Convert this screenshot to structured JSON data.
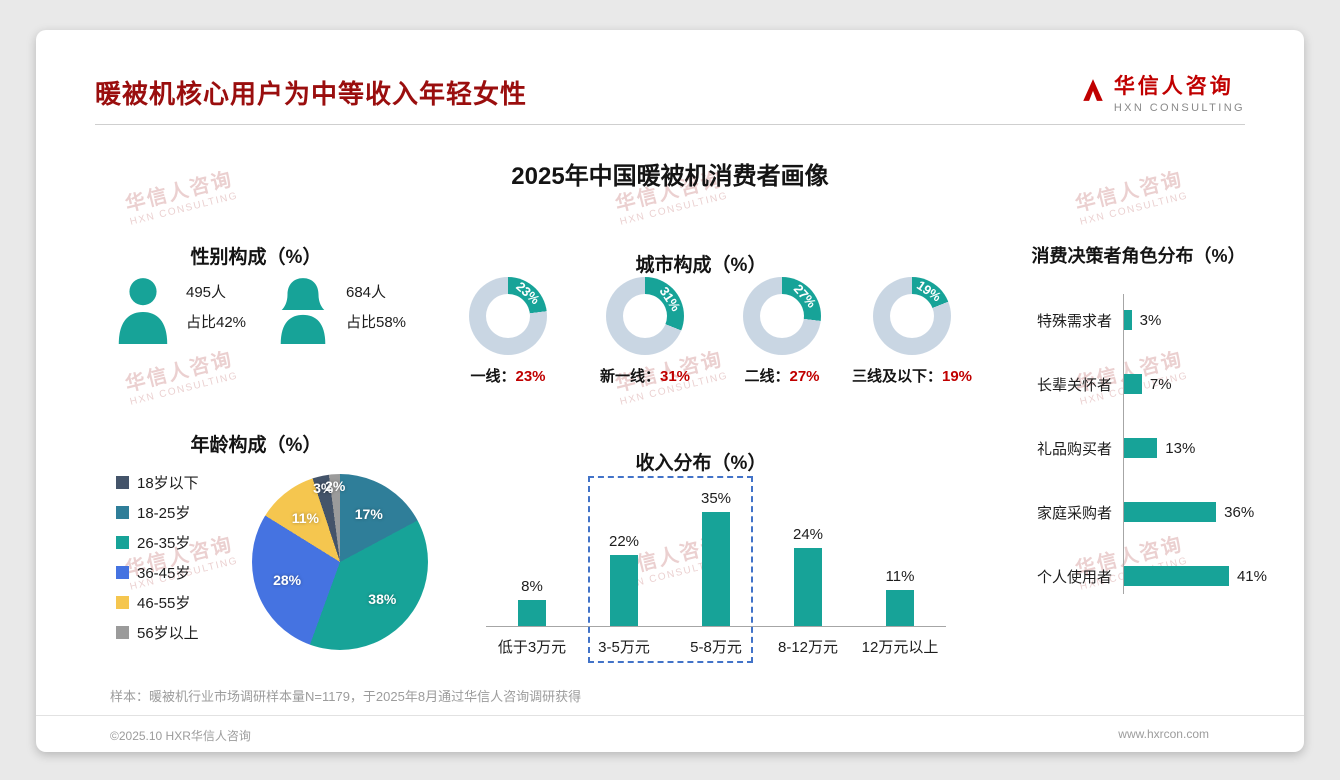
{
  "page": {
    "header_title": "暖被机核心用户为中等收入年轻女性",
    "logo_name": "华信人咨询",
    "logo_sub": "HXN CONSULTING",
    "main_title": "2025年中国暖被机消费者画像",
    "watermark_line1": "华信人咨询",
    "watermark_line2": "HXN CONSULTING",
    "footnote": "样本：暖被机行业市场调研样本量N=1179，于2025年8月通过华信人咨询调研获得",
    "footer_left": "©2025.10 HXR华信人咨询",
    "footer_right": "www.hxrcon.com"
  },
  "colors": {
    "teal": "#17A398",
    "donut_track": "#C9D6E3",
    "title_red": "#9A0E0E",
    "accent_red": "#C00000",
    "highlight_border": "#4273C8",
    "axis_gray": "#A6A6A6",
    "watermark_pink": "#C87E7E"
  },
  "chart_data": [
    {
      "type": "pictogram",
      "title": "性别构成（%）",
      "items": [
        {
          "icon": "male-icon",
          "count": "495人",
          "share": "占比42%"
        },
        {
          "icon": "female-icon",
          "count": "684人",
          "share": "占比58%"
        }
      ]
    },
    {
      "type": "donut",
      "title": "城市构成（%）",
      "items": [
        {
          "label": "一线",
          "caption": "一线：",
          "value": 23,
          "display": "23%"
        },
        {
          "label": "新一线",
          "caption": "新一线：",
          "value": 31,
          "display": "31%"
        },
        {
          "label": "二线",
          "caption": "二线：",
          "value": 27,
          "display": "27%"
        },
        {
          "label": "三线及以下",
          "caption": "三线及以下：",
          "value": 19,
          "display": "19%"
        }
      ]
    },
    {
      "type": "bar-horizontal",
      "title": "消费决策者角色分布（%）",
      "categories": [
        "特殊需求者",
        "长辈关怀者",
        "礼品购买者",
        "家庭采购者",
        "个人使用者"
      ],
      "values": [
        3,
        7,
        13,
        36,
        41
      ],
      "labels": [
        "3%",
        "7%",
        "13%",
        "36%",
        "41%"
      ],
      "xlim": [
        0,
        45
      ],
      "legend_position": "none"
    },
    {
      "type": "pie",
      "title": "年龄构成（%）",
      "categories": [
        "18岁以下",
        "18-25岁",
        "26-35岁",
        "36-45岁",
        "46-55岁",
        "56岁以上"
      ],
      "values": [
        3,
        17,
        38,
        28,
        11,
        2
      ],
      "labels": [
        "3%",
        "17%",
        "38%",
        "28%",
        "11%",
        "2%"
      ],
      "colors": [
        "#44546A",
        "#2F7E99",
        "#17A398",
        "#4573E1",
        "#F5C64F",
        "#9B9B9B"
      ],
      "draw_order": [
        1,
        2,
        3,
        4,
        0,
        5
      ],
      "legend_position": "left"
    },
    {
      "type": "bar",
      "title": "收入分布（%）",
      "categories": [
        "低于3万元",
        "3-5万元",
        "5-8万元",
        "8-12万元",
        "12万元以上"
      ],
      "values": [
        8,
        22,
        35,
        24,
        11
      ],
      "labels": [
        "8%",
        "22%",
        "35%",
        "24%",
        "11%"
      ],
      "highlight_categories": [
        "3-5万元",
        "5-8万元"
      ],
      "ylim": [
        0,
        40
      ]
    }
  ]
}
